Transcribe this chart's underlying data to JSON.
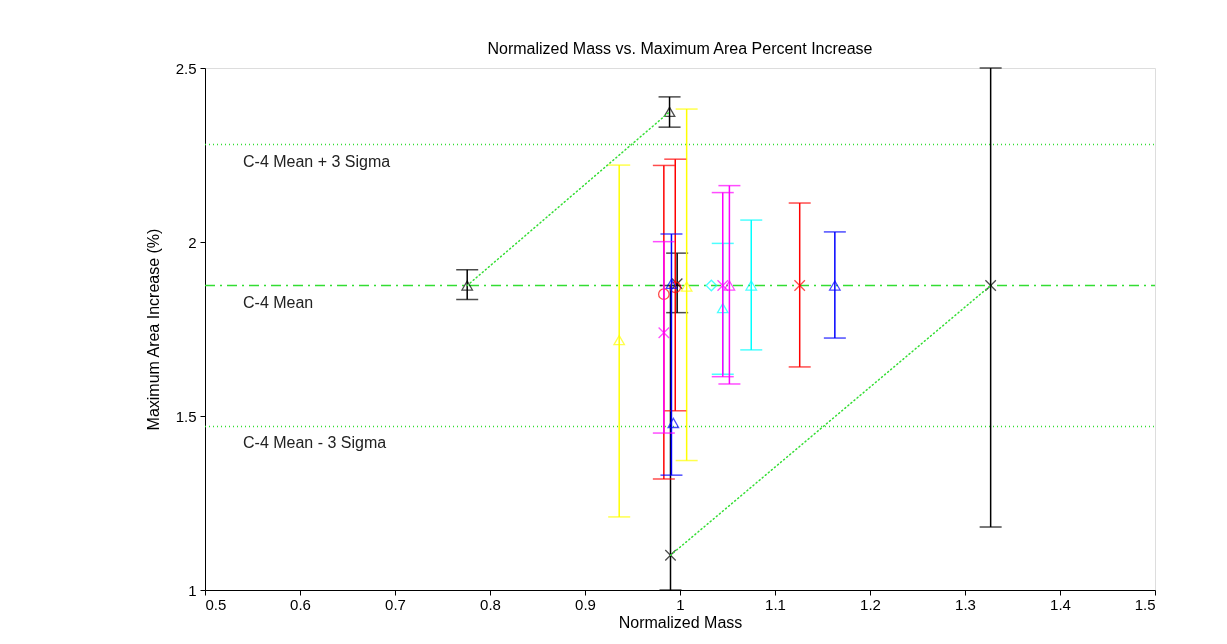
{
  "chart_data": {
    "type": "scatter",
    "title": "Normalized Mass vs. Maximum Area Percent Increase",
    "xlabel": "Normalized Mass",
    "ylabel": "Maximum Area Increase (%)",
    "xlim": [
      0.5,
      1.5
    ],
    "xticks": [
      0.5,
      0.6,
      0.7,
      0.8,
      0.9,
      1,
      1.1,
      1.2,
      1.3,
      1.4,
      1.5
    ],
    "ylim": [
      1,
      2.5
    ],
    "yticks": [
      1,
      1.5,
      2,
      2.5
    ],
    "grid": false,
    "ref_lines": [
      {
        "axis": "y",
        "value": 2.28,
        "label": "C-4 Mean + 3 Sigma",
        "color": "#33dd33",
        "line_style": "dotted"
      },
      {
        "axis": "y",
        "value": 1.875,
        "label": "C-4 Mean",
        "color": "#33dd33",
        "line_style": "dashed"
      },
      {
        "axis": "y",
        "value": 1.47,
        "label": "C-4 Mean - 3 Sigma",
        "color": "#33dd33",
        "line_style": "dotted"
      }
    ],
    "series": [
      {
        "color": "#000000",
        "marker": "triangle",
        "x": [
          0.776,
          0.989
        ],
        "values": [
          1.875,
          2.374
        ],
        "errors": [
          [
            1.835,
            1.92
          ],
          [
            2.33,
            2.417
          ]
        ]
      },
      {
        "color": "#000000",
        "marker": "cross",
        "x": [
          0.99,
          0.997,
          1.327
        ],
        "values": [
          1.1,
          1.88,
          1.875
        ],
        "errors": [
          [
            1.0,
            1.875
          ],
          [
            1.797,
            1.968
          ],
          [
            1.181,
            2.5
          ]
        ]
      },
      {
        "color": "#ffff00",
        "marker": "triangle",
        "x": [
          0.936,
          1.007
        ],
        "values": [
          1.718,
          1.872
        ],
        "errors": [
          [
            1.21,
            2.221
          ],
          [
            1.372,
            2.382
          ]
        ]
      },
      {
        "color": "#ff0000",
        "marker": "circle",
        "x": [
          0.983,
          0.995
        ],
        "values": [
          1.85,
          1.87
        ],
        "errors": [
          [
            1.319,
            2.22
          ],
          [
            1.515,
            2.238
          ]
        ]
      },
      {
        "color": "#ff0000",
        "marker": "cross",
        "x": [
          1.126
        ],
        "values": [
          1.875
        ],
        "errors": [
          [
            1.641,
            2.112
          ]
        ]
      },
      {
        "color": "#0000ff",
        "marker": "triangle",
        "x": [
          0.991,
          0.993,
          1.163
        ],
        "values": [
          1.88,
          1.48,
          1.875
        ],
        "errors": [
          [
            1.33,
            2.023
          ],
          null,
          [
            1.724,
            2.029
          ]
        ]
      },
      {
        "color": "#00ffff",
        "marker": "triangle",
        "x": [
          1.045,
          1.075
        ],
        "values": [
          1.81,
          1.875
        ],
        "errors": [
          [
            1.62,
            1.996
          ],
          [
            1.69,
            2.063
          ]
        ]
      },
      {
        "color": "#00ffff",
        "marker": "diamond",
        "x": [
          1.033
        ],
        "values": [
          1.875
        ]
      },
      {
        "color": "#ff00ff",
        "marker": "triangle",
        "x": [
          1.052
        ],
        "values": [
          1.875
        ],
        "errors": [
          [
            1.592,
            2.162
          ]
        ]
      },
      {
        "color": "#ff00ff",
        "marker": "cross",
        "x": [
          0.983,
          1.045
        ],
        "values": [
          1.739,
          1.875
        ],
        "errors": [
          [
            1.451,
            2.001
          ],
          [
            1.613,
            2.142
          ]
        ]
      },
      {
        "type": "line",
        "color": "#33dd33",
        "line_style": "dotted",
        "x": [
          0.776,
          0.989
        ],
        "values": [
          1.875,
          2.374
        ]
      },
      {
        "type": "line",
        "color": "#33dd33",
        "line_style": "dotted",
        "x": [
          0.99,
          1.327
        ],
        "values": [
          1.1,
          1.875
        ]
      }
    ]
  }
}
